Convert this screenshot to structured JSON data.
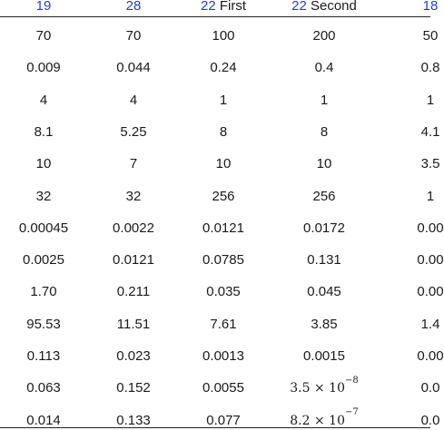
{
  "headers": [
    {
      "ref": "19",
      "label": ""
    },
    {
      "ref": "28",
      "label": ""
    },
    {
      "ref": "22",
      "label": "First"
    },
    {
      "ref": "22",
      "label": "Second"
    },
    {
      "ref": "18",
      "label": ""
    }
  ],
  "rows": [
    [
      "70",
      "70",
      "100",
      "200",
      "50"
    ],
    [
      "0.009",
      "0.044",
      "0.24",
      "0.4",
      "0.8"
    ],
    [
      "4",
      "4",
      "1",
      "1",
      "1"
    ],
    [
      "8.1",
      "5.25",
      "8",
      "8",
      "4.1"
    ],
    [
      "10",
      "7",
      "10",
      "10",
      "3.5"
    ],
    [
      "32",
      "32",
      "256",
      "256",
      "1"
    ],
    [
      "0.00045",
      "0.0022",
      "0.0121",
      "0.0172",
      "0.00"
    ],
    [
      "0.0025",
      "0.0121",
      "0.0785",
      "0.131",
      "0.00"
    ],
    [
      "1.70",
      "0.211",
      "0.035",
      "0.045",
      "0.00"
    ],
    [
      "95.53",
      "11.51",
      "7.61",
      "3.85",
      "1.4"
    ],
    [
      "0.113",
      "0.023",
      "0.0013",
      "0.0015",
      "0.00"
    ],
    [
      "0.063",
      "0.152",
      "0.0055",
      "3.5 × 10",
      "0.0"
    ],
    [
      "0.014",
      "0.133",
      "0.077",
      "8.2 × 10",
      "0.0"
    ]
  ],
  "exponents": {
    "row_11_col_3": "−8",
    "row_12_col_3": "−7"
  },
  "colors": {
    "reference_link": "#1f3fd6",
    "text": "#1a1a1a",
    "rule": "#222222"
  }
}
